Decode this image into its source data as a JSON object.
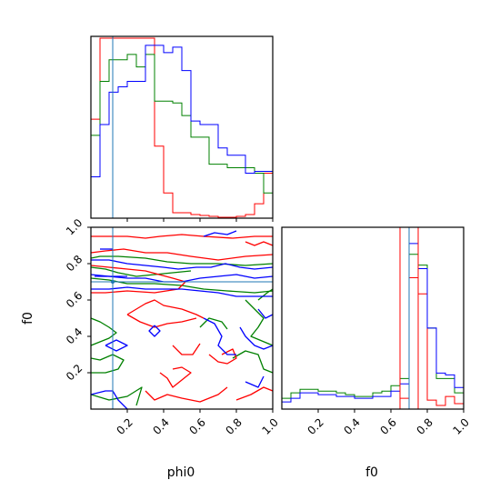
{
  "chart_data": {
    "type": "corner",
    "parameters": [
      "phi0",
      "f0"
    ],
    "axis_labels": {
      "x_left": "phi0",
      "x_right": "f0",
      "y_lower": "f0"
    },
    "colors": {
      "red": "#ff0000",
      "green": "#008000",
      "blue": "#0000ff",
      "truth": "#1f77b4"
    },
    "truth": {
      "phi0": 0.12,
      "f0": 0.7
    },
    "phi0_ticks": [
      {
        "value": 0.2,
        "label": "0.2"
      },
      {
        "value": 0.4,
        "label": "0.4"
      },
      {
        "value": 0.6,
        "label": "0.6"
      },
      {
        "value": 0.8,
        "label": "0.8"
      },
      {
        "value": 1.0,
        "label": "1.0"
      }
    ],
    "f0_ticks": [
      {
        "value": 0.2,
        "label": "0.2"
      },
      {
        "value": 0.4,
        "label": "0.4"
      },
      {
        "value": 0.6,
        "label": "0.6"
      },
      {
        "value": 0.8,
        "label": "0.8"
      },
      {
        "value": 1.0,
        "label": "1.0"
      }
    ],
    "phi0_hist": {
      "bin_edges": [
        0,
        0.05,
        0.1,
        0.15,
        0.2,
        0.25,
        0.3,
        0.35,
        0.4,
        0.45,
        0.5,
        0.55,
        0.6,
        0.65,
        0.7,
        0.75,
        0.8,
        0.85,
        0.9,
        0.95,
        1.0
      ],
      "series": [
        {
          "color": "red",
          "values": [
            0.55,
            1.0,
            1.0,
            1.0,
            1.0,
            1.0,
            1.0,
            0.4,
            0.14,
            0.03,
            0.03,
            0.02,
            0.015,
            0.01,
            0.005,
            0.005,
            0.01,
            0.02,
            0.08,
            0.25
          ]
        },
        {
          "color": "green",
          "values": [
            0.46,
            0.76,
            0.88,
            0.88,
            0.91,
            0.84,
            0.91,
            0.65,
            0.65,
            0.64,
            0.57,
            0.45,
            0.45,
            0.3,
            0.3,
            0.28,
            0.28,
            0.28,
            0.25,
            0.14
          ]
        },
        {
          "color": "blue",
          "values": [
            0.23,
            0.52,
            0.7,
            0.73,
            0.76,
            0.76,
            0.96,
            0.96,
            0.92,
            0.95,
            0.82,
            0.54,
            0.52,
            0.52,
            0.39,
            0.35,
            0.35,
            0.25,
            0.26,
            0.26
          ]
        }
      ]
    },
    "f0_hist": {
      "bin_edges": [
        0,
        0.05,
        0.1,
        0.15,
        0.2,
        0.25,
        0.3,
        0.35,
        0.4,
        0.45,
        0.5,
        0.55,
        0.6,
        0.65,
        0.7,
        0.75,
        0.8,
        0.85,
        0.9,
        0.95,
        1.0
      ],
      "series": [
        {
          "color": "red",
          "values": [
            0,
            0,
            0,
            0,
            0,
            0,
            0,
            0,
            0,
            0,
            0,
            0,
            0,
            0.06,
            0.73,
            0.64,
            0.05,
            0.02,
            0.07,
            0.03
          ]
        },
        {
          "color": "green",
          "values": [
            0.06,
            0.09,
            0.11,
            0.11,
            0.1,
            0.1,
            0.09,
            0.08,
            0.07,
            0.07,
            0.09,
            0.1,
            0.13,
            0.17,
            0.86,
            0.8,
            0.45,
            0.17,
            0.17,
            0.09
          ]
        },
        {
          "color": "blue",
          "values": [
            0.04,
            0.06,
            0.09,
            0.09,
            0.08,
            0.08,
            0.07,
            0.07,
            0.06,
            0.06,
            0.07,
            0.07,
            0.1,
            0.14,
            0.92,
            0.78,
            0.45,
            0.2,
            0.19,
            0.12
          ]
        }
      ]
    },
    "joint_contours": [
      {
        "color": "green",
        "lines": [
          [
            [
              0.0,
              0.83
            ],
            [
              0.05,
              0.84
            ],
            [
              0.15,
              0.84
            ],
            [
              0.3,
              0.83
            ],
            [
              0.42,
              0.81
            ],
            [
              0.55,
              0.8
            ],
            [
              0.7,
              0.8
            ],
            [
              0.85,
              0.79
            ],
            [
              1.0,
              0.8
            ]
          ],
          [
            [
              0.0,
              0.72
            ],
            [
              0.1,
              0.71
            ],
            [
              0.2,
              0.69
            ],
            [
              0.35,
              0.69
            ],
            [
              0.5,
              0.68
            ],
            [
              0.62,
              0.66
            ],
            [
              0.75,
              0.65
            ],
            [
              0.9,
              0.64
            ],
            [
              1.0,
              0.65
            ]
          ],
          [
            [
              0.0,
              0.78
            ],
            [
              0.08,
              0.77
            ],
            [
              0.15,
              0.75
            ],
            [
              0.25,
              0.73
            ],
            [
              0.35,
              0.74
            ],
            [
              0.45,
              0.75
            ],
            [
              0.55,
              0.76
            ]
          ],
          [
            [
              0.0,
              0.5
            ],
            [
              0.05,
              0.48
            ],
            [
              0.1,
              0.45
            ],
            [
              0.14,
              0.42
            ],
            [
              0.1,
              0.39
            ],
            [
              0.05,
              0.37
            ],
            [
              0.0,
              0.35
            ]
          ],
          [
            [
              0.0,
              0.28
            ],
            [
              0.05,
              0.27
            ],
            [
              0.12,
              0.3
            ],
            [
              0.18,
              0.27
            ],
            [
              0.15,
              0.22
            ],
            [
              0.08,
              0.2
            ],
            [
              0.0,
              0.2
            ]
          ],
          [
            [
              0.0,
              0.08
            ],
            [
              0.1,
              0.05
            ],
            [
              0.2,
              0.07
            ],
            [
              0.28,
              0.12
            ],
            [
              0.25,
              0.02
            ]
          ],
          [
            [
              0.6,
              0.45
            ],
            [
              0.65,
              0.5
            ],
            [
              0.72,
              0.48
            ],
            [
              0.75,
              0.44
            ]
          ],
          [
            [
              0.78,
              0.28
            ],
            [
              0.85,
              0.32
            ],
            [
              0.92,
              0.3
            ],
            [
              0.95,
              0.22
            ],
            [
              1.0,
              0.2
            ]
          ],
          [
            [
              0.85,
              0.6
            ],
            [
              0.9,
              0.55
            ],
            [
              0.95,
              0.5
            ],
            [
              0.92,
              0.45
            ],
            [
              0.88,
              0.4
            ],
            [
              1.0,
              0.35
            ]
          ],
          [
            [
              0.92,
              0.6
            ],
            [
              0.97,
              0.64
            ],
            [
              1.0,
              0.66
            ]
          ]
        ]
      },
      {
        "color": "red",
        "lines": [
          [
            [
              0.0,
              0.95
            ],
            [
              0.1,
              0.95
            ],
            [
              0.2,
              0.95
            ],
            [
              0.3,
              0.94
            ],
            [
              0.38,
              0.95
            ],
            [
              0.5,
              0.96
            ],
            [
              0.62,
              0.95
            ],
            [
              0.78,
              0.94
            ],
            [
              0.9,
              0.95
            ],
            [
              1.0,
              0.95
            ]
          ],
          [
            [
              0.0,
              0.86
            ],
            [
              0.08,
              0.87
            ],
            [
              0.18,
              0.88
            ],
            [
              0.3,
              0.86
            ],
            [
              0.42,
              0.86
            ],
            [
              0.55,
              0.84
            ],
            [
              0.7,
              0.82
            ],
            [
              0.85,
              0.84
            ],
            [
              1.0,
              0.85
            ]
          ],
          [
            [
              0.0,
              0.79
            ],
            [
              0.1,
              0.78
            ],
            [
              0.2,
              0.77
            ],
            [
              0.3,
              0.76
            ],
            [
              0.45,
              0.72
            ],
            [
              0.52,
              0.7
            ],
            [
              0.48,
              0.66
            ],
            [
              0.35,
              0.64
            ],
            [
              0.2,
              0.65
            ],
            [
              0.08,
              0.64
            ],
            [
              0.0,
              0.64
            ]
          ],
          [
            [
              0.2,
              0.52
            ],
            [
              0.25,
              0.55
            ],
            [
              0.3,
              0.58
            ],
            [
              0.35,
              0.6
            ],
            [
              0.4,
              0.57
            ],
            [
              0.5,
              0.55
            ],
            [
              0.58,
              0.52
            ],
            [
              0.62,
              0.5
            ]
          ],
          [
            [
              0.2,
              0.52
            ],
            [
              0.27,
              0.48
            ],
            [
              0.35,
              0.45
            ],
            [
              0.42,
              0.47
            ],
            [
              0.5,
              0.48
            ],
            [
              0.58,
              0.5
            ]
          ],
          [
            [
              0.45,
              0.35
            ],
            [
              0.5,
              0.3
            ],
            [
              0.56,
              0.3
            ],
            [
              0.6,
              0.36
            ]
          ],
          [
            [
              0.38,
              0.2
            ],
            [
              0.42,
              0.17
            ],
            [
              0.45,
              0.12
            ],
            [
              0.5,
              0.16
            ],
            [
              0.55,
              0.2
            ],
            [
              0.5,
              0.23
            ],
            [
              0.45,
              0.22
            ]
          ],
          [
            [
              0.65,
              0.3
            ],
            [
              0.7,
              0.26
            ],
            [
              0.75,
              0.25
            ],
            [
              0.8,
              0.28
            ],
            [
              0.78,
              0.33
            ],
            [
              0.72,
              0.3
            ]
          ],
          [
            [
              0.3,
              0.1
            ],
            [
              0.35,
              0.05
            ],
            [
              0.42,
              0.08
            ],
            [
              0.5,
              0.06
            ],
            [
              0.6,
              0.04
            ],
            [
              0.7,
              0.08
            ],
            [
              0.75,
              0.12
            ]
          ],
          [
            [
              0.8,
              0.05
            ],
            [
              0.88,
              0.08
            ],
            [
              0.95,
              0.12
            ],
            [
              1.0,
              0.1
            ]
          ],
          [
            [
              0.85,
              0.92
            ],
            [
              0.9,
              0.9
            ],
            [
              0.95,
              0.92
            ],
            [
              1.0,
              0.9
            ]
          ]
        ]
      },
      {
        "color": "blue",
        "lines": [
          [
            [
              0.0,
              0.82
            ],
            [
              0.1,
              0.82
            ],
            [
              0.2,
              0.8
            ],
            [
              0.3,
              0.79
            ],
            [
              0.4,
              0.78
            ],
            [
              0.48,
              0.77
            ],
            [
              0.58,
              0.78
            ],
            [
              0.66,
              0.78
            ],
            [
              0.74,
              0.8
            ],
            [
              0.82,
              0.78
            ],
            [
              0.9,
              0.77
            ],
            [
              1.0,
              0.78
            ]
          ],
          [
            [
              0.0,
              0.66
            ],
            [
              0.1,
              0.66
            ],
            [
              0.2,
              0.67
            ],
            [
              0.3,
              0.66
            ],
            [
              0.4,
              0.66
            ],
            [
              0.5,
              0.66
            ],
            [
              0.6,
              0.65
            ],
            [
              0.7,
              0.64
            ],
            [
              0.8,
              0.62
            ],
            [
              0.9,
              0.62
            ],
            [
              1.0,
              0.62
            ]
          ],
          [
            [
              0.0,
              0.74
            ],
            [
              0.1,
              0.73
            ],
            [
              0.2,
              0.72
            ],
            [
              0.3,
              0.72
            ],
            [
              0.4,
              0.7
            ],
            [
              0.5,
              0.7
            ],
            [
              0.6,
              0.72
            ],
            [
              0.7,
              0.73
            ],
            [
              0.8,
              0.74
            ],
            [
              0.9,
              0.72
            ],
            [
              1.0,
              0.73
            ]
          ],
          [
            [
              0.02,
              0.73
            ],
            [
              0.2,
              0.73
            ]
          ],
          [
            [
              0.05,
              0.88
            ],
            [
              0.12,
              0.88
            ]
          ],
          [
            [
              0.62,
              0.95
            ],
            [
              0.68,
              0.97
            ],
            [
              0.75,
              0.96
            ],
            [
              0.8,
              0.98
            ]
          ],
          [
            [
              0.35,
              0.46
            ],
            [
              0.38,
              0.43
            ],
            [
              0.35,
              0.4
            ],
            [
              0.32,
              0.43
            ],
            [
              0.35,
              0.46
            ]
          ],
          [
            [
              0.62,
              0.5
            ],
            [
              0.68,
              0.47
            ],
            [
              0.72,
              0.4
            ],
            [
              0.7,
              0.35
            ],
            [
              0.75,
              0.3
            ],
            [
              0.8,
              0.3
            ]
          ],
          [
            [
              0.82,
              0.45
            ],
            [
              0.85,
              0.4
            ],
            [
              0.9,
              0.35
            ],
            [
              0.95,
              0.33
            ],
            [
              1.0,
              0.35
            ]
          ],
          [
            [
              0.0,
              0.08
            ],
            [
              0.08,
              0.1
            ],
            [
              0.12,
              0.1
            ],
            [
              0.15,
              0.05
            ],
            [
              0.2,
              0.0
            ]
          ],
          [
            [
              0.08,
              0.35
            ],
            [
              0.14,
              0.32
            ],
            [
              0.2,
              0.35
            ],
            [
              0.14,
              0.38
            ],
            [
              0.08,
              0.35
            ]
          ],
          [
            [
              0.92,
              0.55
            ],
            [
              0.96,
              0.5
            ],
            [
              1.0,
              0.52
            ]
          ],
          [
            [
              0.85,
              0.15
            ],
            [
              0.92,
              0.12
            ],
            [
              0.95,
              0.18
            ]
          ]
        ]
      }
    ]
  }
}
